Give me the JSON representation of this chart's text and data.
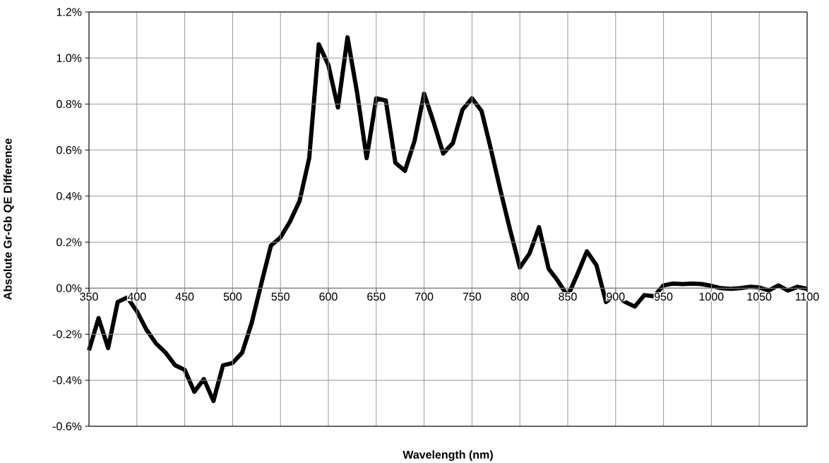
{
  "chart_data": {
    "type": "line",
    "xlabel": "Wavelength (nm)",
    "ylabel": "Absolute Gr-Gb QE Difference",
    "x": [
      350,
      360,
      370,
      380,
      390,
      400,
      410,
      420,
      430,
      440,
      450,
      460,
      470,
      480,
      490,
      500,
      510,
      520,
      530,
      540,
      550,
      560,
      570,
      580,
      590,
      600,
      610,
      620,
      630,
      640,
      650,
      660,
      670,
      680,
      690,
      700,
      710,
      720,
      730,
      740,
      750,
      760,
      770,
      780,
      790,
      800,
      810,
      820,
      830,
      840,
      850,
      860,
      870,
      880,
      890,
      900,
      910,
      920,
      930,
      940,
      950,
      960,
      970,
      980,
      990,
      1000,
      1010,
      1020,
      1030,
      1040,
      1050,
      1060,
      1070,
      1080,
      1090,
      1100
    ],
    "series": [
      {
        "color": "#000000",
        "values": [
          -0.27,
          -0.13,
          -0.26,
          -0.06,
          -0.04,
          -0.1,
          -0.18,
          -0.24,
          -0.28,
          -0.335,
          -0.355,
          -0.45,
          -0.395,
          -0.49,
          -0.335,
          -0.325,
          -0.28,
          -0.15,
          0.02,
          0.185,
          0.22,
          0.29,
          0.38,
          0.565,
          1.06,
          0.97,
          0.785,
          1.09,
          0.85,
          0.565,
          0.825,
          0.815,
          0.545,
          0.51,
          0.64,
          0.845,
          0.72,
          0.585,
          0.63,
          0.775,
          0.825,
          0.77,
          0.6,
          0.42,
          0.25,
          0.09,
          0.15,
          0.265,
          0.085,
          0.03,
          -0.035,
          0.06,
          0.16,
          0.1,
          -0.06,
          -0.03,
          -0.06,
          -0.08,
          -0.03,
          -0.035,
          0.012,
          0.02,
          0.018,
          0.02,
          0.018,
          0.01,
          0,
          -0.003,
          0,
          0.006,
          0.003,
          -0.01,
          0.012,
          -0.01,
          0.006,
          -0.003
        ]
      }
    ],
    "xlim": [
      350,
      1100
    ],
    "xticks": [
      350,
      400,
      450,
      500,
      550,
      600,
      650,
      700,
      750,
      800,
      850,
      900,
      950,
      1000,
      1050,
      1100
    ],
    "ylim": [
      -0.6,
      1.2
    ],
    "yticks": [
      {
        "value": -0.6,
        "label": "-0.6%"
      },
      {
        "value": -0.4,
        "label": "-0.4%"
      },
      {
        "value": -0.2,
        "label": "-0.2%"
      },
      {
        "value": 0,
        "label": "0.0%"
      },
      {
        "value": 0.2,
        "label": "0.2%"
      },
      {
        "value": 0.4,
        "label": "0.4%"
      },
      {
        "value": 0.6,
        "label": "0.6%"
      },
      {
        "value": 0.8,
        "label": "0.8%"
      },
      {
        "value": 1.0,
        "label": "1.0%"
      },
      {
        "value": 1.2,
        "label": "1.2%"
      }
    ],
    "grid": true,
    "marker": "none",
    "line_style": "solid"
  }
}
